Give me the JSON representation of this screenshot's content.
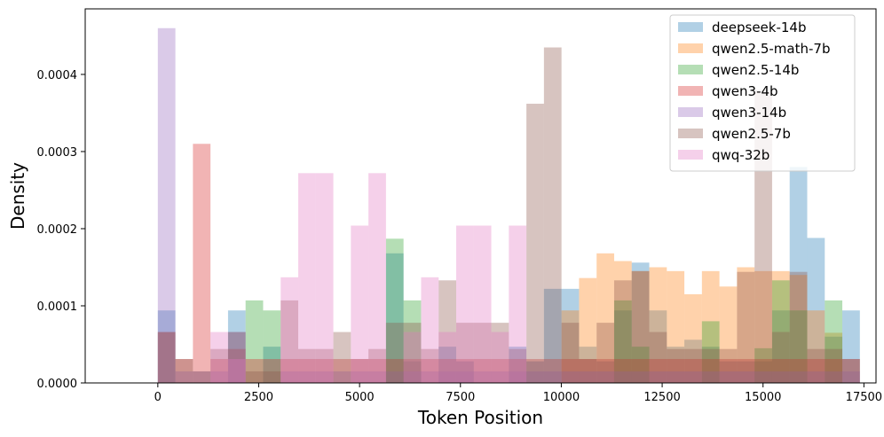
{
  "chart_data": {
    "type": "histogram",
    "xlabel": "Token Position",
    "ylabel": "Density",
    "xlim": [
      -1800,
      17800
    ],
    "ylim": [
      0,
      0.000485
    ],
    "x_ticks": [
      0,
      2500,
      5000,
      7500,
      10000,
      12500,
      15000,
      17500
    ],
    "x_tick_labels": [
      "0",
      "2500",
      "5000",
      "7500",
      "10000",
      "12500",
      "15000",
      "17500"
    ],
    "y_ticks": [
      0,
      0.0001,
      0.0002,
      0.0003,
      0.0004
    ],
    "y_tick_labels": [
      "0.0000",
      "0.0001",
      "0.0002",
      "0.0003",
      "0.0004"
    ],
    "grid": false,
    "legend_position": "top-right",
    "alpha": 0.35,
    "series": [
      {
        "name": "deepseek-14b",
        "color": "#1f77b4",
        "bin_start": 0,
        "bin_width": 435,
        "values": [
          9.4e-05,
          0,
          0,
          0,
          9.4e-05,
          0,
          4.7e-05,
          0,
          0,
          0,
          0,
          0,
          0,
          0.000168,
          2.8e-05,
          0,
          4.7e-05,
          2.8e-05,
          0,
          0,
          4.7e-05,
          2.8e-05,
          0.000122,
          0.000122,
          4.7e-05,
          2.8e-05,
          9.4e-05,
          0.000156,
          9.4e-05,
          4.7e-05,
          5.6e-05,
          4.7e-05,
          2.8e-05,
          2.8e-05,
          2.8e-05,
          9.4e-05,
          0.00028,
          0.000188,
          6e-05,
          9.4e-05
        ]
      },
      {
        "name": "qwen2.5-math-7b",
        "color": "#ff7f0e",
        "bin_start": 0,
        "bin_width": 435,
        "values": [
          0,
          0,
          0,
          0,
          0,
          0,
          0,
          0,
          0,
          0,
          0,
          0,
          0,
          0,
          0,
          0,
          0,
          0,
          0,
          0,
          0,
          0,
          0,
          9.4e-05,
          0.000136,
          0.000168,
          0.000158,
          0.000145,
          0.00015,
          0.000145,
          0.000115,
          0.000145,
          0.000125,
          0.00015,
          0.000145,
          0.000145,
          0.00014,
          9.4e-05,
          6.5e-05,
          0
        ]
      },
      {
        "name": "qwen2.5-14b",
        "color": "#2ca02c",
        "bin_start": 0,
        "bin_width": 435,
        "values": [
          0,
          0,
          0,
          0,
          0,
          0.000107,
          9.4e-05,
          0,
          0,
          0,
          0,
          0,
          0,
          0.000187,
          0.000107,
          0,
          0,
          0,
          0,
          0,
          0,
          0,
          0,
          0,
          0,
          0,
          0.000107,
          4.7e-05,
          0,
          0,
          0,
          8e-05,
          0,
          0,
          4.5e-05,
          0.000133,
          9.4e-05,
          0,
          0.000107,
          0
        ]
      },
      {
        "name": "qwen3-4b",
        "color": "#d62728",
        "bin_start": 0,
        "bin_width": 435,
        "values": [
          6.6e-05,
          3.1e-05,
          0.00031,
          3.1e-05,
          4.4e-05,
          3.1e-05,
          3.1e-05,
          3.1e-05,
          3.1e-05,
          3.1e-05,
          3.1e-05,
          3.1e-05,
          3.1e-05,
          3.1e-05,
          3.1e-05,
          3.1e-05,
          3.1e-05,
          3.1e-05,
          3.1e-05,
          3.1e-05,
          3.1e-05,
          3.1e-05,
          3.1e-05,
          3.1e-05,
          3.1e-05,
          3.1e-05,
          3.1e-05,
          3.1e-05,
          3.1e-05,
          3.1e-05,
          3.1e-05,
          3.1e-05,
          3.1e-05,
          3.1e-05,
          3.1e-05,
          3.1e-05,
          3.1e-05,
          3.1e-05,
          3.1e-05,
          3.1e-05
        ]
      },
      {
        "name": "qwen3-14b",
        "color": "#9467bd",
        "bin_start": 0,
        "bin_width": 435,
        "values": [
          0.00046,
          1.5e-05,
          1.5e-05,
          1.5e-05,
          6.6e-05,
          0,
          0,
          1.5e-05,
          1.5e-05,
          1.5e-05,
          1.5e-05,
          1.5e-05,
          1.5e-05,
          1.5e-05,
          1.5e-05,
          1.5e-05,
          1.5e-05,
          1.5e-05,
          1.5e-05,
          1.5e-05,
          1.5e-05,
          1.5e-05,
          1.5e-05,
          1.5e-05,
          1.5e-05,
          1.5e-05,
          1.5e-05,
          1.5e-05,
          1.5e-05,
          1.5e-05,
          1.5e-05,
          1.5e-05,
          1.5e-05,
          1.5e-05,
          1.5e-05,
          1.5e-05,
          1.5e-05,
          1.5e-05,
          1.5e-05,
          1.5e-05
        ]
      },
      {
        "name": "qwen2.5-7b",
        "color": "#8c564b",
        "bin_start": 0,
        "bin_width": 435,
        "values": [
          6.6e-05,
          3.1e-05,
          1.5e-05,
          4.4e-05,
          6.6e-05,
          1.5e-05,
          1.5e-05,
          0.000107,
          4.4e-05,
          4.4e-05,
          6.6e-05,
          3.1e-05,
          4.4e-05,
          7.8e-05,
          7.8e-05,
          4.4e-05,
          0.000133,
          7.8e-05,
          7.8e-05,
          7.8e-05,
          4.4e-05,
          0.000362,
          0.000435,
          7.8e-05,
          3.1e-05,
          7.8e-05,
          0.000133,
          0.000145,
          6.6e-05,
          4.4e-05,
          4.4e-05,
          4.4e-05,
          4.4e-05,
          0.000144,
          0.00038,
          6.6e-05,
          0.000144,
          4.4e-05,
          4.4e-05,
          3.1e-05
        ]
      },
      {
        "name": "qwq-32b",
        "color": "#e377c2",
        "bin_start": 0,
        "bin_width": 435,
        "values": [
          0,
          0,
          0,
          6.6e-05,
          3.1e-05,
          0,
          0,
          0.000137,
          0.000272,
          0.000272,
          0,
          0.000204,
          0.000272,
          0,
          6.6e-05,
          0.000137,
          6.6e-05,
          0.000204,
          0.000204,
          6.6e-05,
          0.000204,
          0,
          0,
          0,
          0,
          0,
          0,
          0,
          0,
          0,
          0,
          0,
          0,
          0,
          0,
          0,
          0,
          0,
          0,
          0
        ]
      }
    ]
  }
}
